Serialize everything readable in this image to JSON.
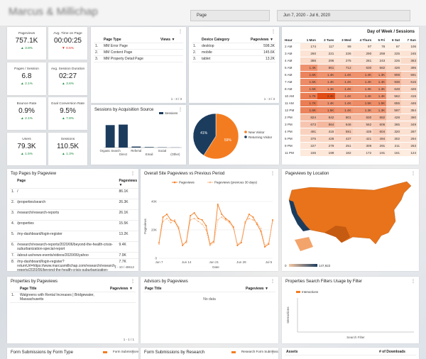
{
  "header": {
    "title": "Marcus & Millichap",
    "filter": "Page",
    "date_range": "Jun 7, 2020 - Jul 6, 2020"
  },
  "scorecards": [
    {
      "label": "Pageviews",
      "value": "757.1K",
      "change": "▲ 3.8%"
    },
    {
      "label": "Avg. Time on Page",
      "value": "00:00:25",
      "change": "▼ 0.5%"
    },
    {
      "label": "Pages / Session",
      "value": "6.8",
      "change": "▲ 2.1%"
    },
    {
      "label": "Avg. Session Duration",
      "value": "02:27",
      "change": "▲ 3.6%"
    },
    {
      "label": "Bounce Rate",
      "value": "0.9%",
      "change": "▲ 2.1%"
    },
    {
      "label": "Goal Conversion Rate",
      "value": "9.5%",
      "change": "▲ 7.8%"
    },
    {
      "label": "Users",
      "value": "79.3K",
      "change": "▲ 1.5%"
    },
    {
      "label": "Sessions",
      "value": "110.5K",
      "change": "▲ 1.3%"
    }
  ],
  "page_type": {
    "columns": [
      "",
      "Page Type",
      "Views ▼"
    ],
    "rows": [
      [
        "1.",
        "MM Error Page",
        ""
      ],
      [
        "2.",
        "MM Content Page",
        ""
      ],
      [
        "3.",
        "MM Property Detail Page",
        ""
      ]
    ],
    "pagination": "1 - 3 / 3"
  },
  "device": {
    "columns": [
      "",
      "Device Category",
      "Pageviews ▼"
    ],
    "rows": [
      [
        "1.",
        "desktop",
        "598.3K"
      ],
      [
        "2.",
        "mobile",
        "145.6K"
      ],
      [
        "3.",
        "tablet",
        "13.2K"
      ]
    ],
    "pagination": "1 - 3 / 3"
  },
  "sessions_chart": {
    "type": "bar",
    "title": "Sessions by Acquisition Source",
    "legend": "Sessions",
    "color": "#1c3c5e",
    "categories": [
      "Organic Search",
      "Direct",
      "Referral",
      "Email",
      "Social",
      "(Other)"
    ],
    "values": [
      88,
      90,
      4,
      2,
      1,
      0.5
    ],
    "ylim": [
      0,
      100
    ]
  },
  "visitor_pie": {
    "type": "pie",
    "labels": [
      "New Visitor",
      "Returning Visitor"
    ],
    "values": [
      59,
      41
    ],
    "value_labels": [
      "59%",
      "41%"
    ],
    "colors": [
      "#f47c20",
      "#1c3c5e"
    ]
  },
  "heatmap": {
    "title": "Day of Week / Sessions",
    "columns": [
      "Hour",
      "1 Mon",
      "2 Tues",
      "3 Wed",
      "4 Thurs",
      "5 Fri",
      "6 Sat",
      "7 Sun"
    ],
    "rows": [
      [
        "2 AM",
        "174",
        "117",
        "99",
        "97",
        "78",
        "67",
        "106"
      ],
      [
        "3 AM",
        "260",
        "221",
        "226",
        "290",
        "259",
        "225",
        "245"
      ],
      [
        "4 AM",
        "386",
        "296",
        "275",
        "281",
        "243",
        "226",
        "363"
      ],
      [
        "5 AM",
        "1.4K",
        "861",
        "712",
        "630",
        "582",
        "426",
        "395"
      ],
      [
        "6 AM",
        "1.6K",
        "1.4K",
        "1.4K",
        "1.4K",
        "1.3K",
        "908",
        "591"
      ],
      [
        "7 AM",
        "1.5K",
        "1.4K",
        "1.4K",
        "1.4K",
        "1.4K",
        "938",
        "615"
      ],
      [
        "8 AM",
        "1.5K",
        "1.4K",
        "1.4K",
        "1.3K",
        "1.3K",
        "648",
        "426"
      ],
      [
        "10 AM",
        "1.7K",
        "2.4K",
        "1.4K",
        "1.4K",
        "1.4K",
        "562",
        "415"
      ],
      [
        "11 AM",
        "1.7K",
        "1.4K",
        "1.4K",
        "1.5K",
        "1.5K",
        "655",
        "446"
      ],
      [
        "12 PM",
        "1.6K",
        "1.5K",
        "1.4K",
        "1.3K",
        "1.3K",
        "597",
        "354"
      ],
      [
        "2 PM",
        "824",
        "842",
        "801",
        "830",
        "882",
        "428",
        "390"
      ],
      [
        "3 PM",
        "673",
        "864",
        "646",
        "562",
        "606",
        "365",
        "349"
      ],
      [
        "4 PM",
        "491",
        "415",
        "591",
        "435",
        "604",
        "320",
        "287"
      ],
      [
        "5 PM",
        "375",
        "428",
        "437",
        "421",
        "494",
        "302",
        "294"
      ],
      [
        "9 PM",
        "227",
        "279",
        "251",
        "309",
        "291",
        "211",
        "253"
      ],
      [
        "11 PM",
        "155",
        "199",
        "182",
        "172",
        "191",
        "161",
        "124"
      ]
    ]
  },
  "top_pages": {
    "title": "Top Pages by Pageview",
    "columns": [
      "",
      "Page",
      "Pageviews ▼",
      "% Δ"
    ],
    "rows": [
      [
        "1.",
        "/",
        "86.1K",
        "5.8% ↑"
      ],
      [
        "2.",
        "/properties/search",
        "26.3K",
        "10.9% ↓"
      ],
      [
        "3.",
        "/research/research-reports",
        "26.1K",
        "8.8% ↑"
      ],
      [
        "4.",
        "/properties",
        "15.5K",
        "8.9% ↑"
      ],
      [
        "5.",
        "/my-dashboard/login-register",
        "13.2K",
        "8.6% ↑"
      ],
      [
        "6.",
        "/research/research-reports/2020/06/beyond-the-health-crisis-suburbanization-special-report",
        "9.4K",
        "-"
      ],
      [
        "7.",
        "/about-us/news-events/videos/2020/06/yahoo",
        "7.9K",
        "-"
      ],
      [
        "8.",
        "/my-dashboard/login-register?returnUrl=https://www.marcusmillichap.com/research/research-reports/2020/06/beyond-the-health-crisis-suburbanization-special-report",
        "7.7K",
        "-"
      ]
    ],
    "pagination": "1 - 10 / 48612"
  },
  "line_chart": {
    "type": "line",
    "title": "Overall Site Pageviews vs Previous Period",
    "x_label": "Date",
    "y_label": "Pageviews",
    "categories": [
      "Jun 7",
      null,
      null,
      null,
      null,
      null,
      null,
      "Jun 14",
      null,
      null,
      null,
      null,
      null,
      null,
      "Jun 21",
      null,
      null,
      null,
      null,
      null,
      null,
      "Jun 28",
      null,
      null,
      null,
      null,
      null,
      null,
      "Jul 5",
      null
    ],
    "series": [
      {
        "name": "Pageviews",
        "color": "#f47c20",
        "values": [
          11000,
          29000,
          31000,
          27000,
          26000,
          21000,
          9000,
          12000,
          30000,
          32000,
          28000,
          27000,
          23000,
          10000,
          12000,
          38000,
          31000,
          28000,
          26000,
          22000,
          9000,
          11000,
          25000,
          31000,
          29000,
          24000,
          19000,
          8000,
          10000,
          27000
        ]
      },
      {
        "name": "Pageviews (previous 30 days)",
        "color": "#f8b98a",
        "values": [
          10000,
          26000,
          28000,
          25000,
          27000,
          22000,
          10000,
          11000,
          27000,
          28000,
          26000,
          24000,
          20000,
          9000,
          11000,
          27000,
          29000,
          27000,
          25000,
          21000,
          10000,
          12000,
          26000,
          28000,
          27000,
          25000,
          21000,
          9000,
          11000,
          26000
        ]
      }
    ],
    "ylim": [
      0,
      45000
    ],
    "yticks": [
      {
        "value": 0,
        "label": "0"
      },
      {
        "value": 20000,
        "label": "20K"
      },
      {
        "value": 40000,
        "label": "40K"
      }
    ]
  },
  "location_map": {
    "title": "Pageviews by Location",
    "legend_min": "0",
    "legend_max": "147,922"
  },
  "properties": {
    "title": "Properties by Pageviews",
    "columns": [
      "",
      "Page Title",
      "Pageviews ▼"
    ],
    "rows": [
      [
        "1.",
        "Walgreens with Rental Increases | Bridgewater, Massachusetts",
        ""
      ]
    ],
    "pagination": "1 - 1 / 1"
  },
  "advisors": {
    "title": "Advisors by Pageviews",
    "columns": [
      "Page Title",
      "Pageviews ▼"
    ],
    "empty": "No data"
  },
  "filters_chart": {
    "title": "Properties Search Filters Usage by Filter",
    "legend": "Interactions",
    "x_label": "Search Filter",
    "y_label": "Interactions"
  },
  "form_type": {
    "title": "Form Submissions by Form Type",
    "legend": "Form Submissions"
  },
  "form_research": {
    "title": "Form Submissions by Research",
    "legend": "Research Form Submissions"
  },
  "assets": {
    "columns": [
      "Assets",
      "# of Downloads"
    ],
    "empty": "No data"
  }
}
